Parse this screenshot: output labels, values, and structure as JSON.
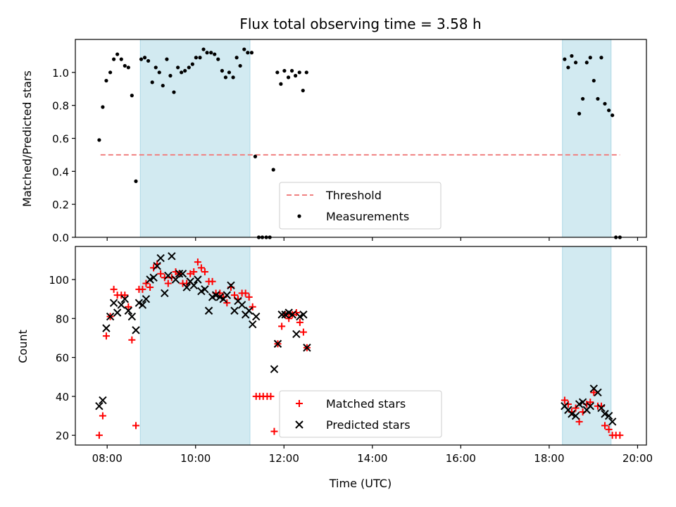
{
  "title": "Flux total observing time = 3.58 h",
  "chart_data": [
    {
      "type": "scatter",
      "panel": "top",
      "ylabel": "Matched/Predicted stars",
      "xlabel": "",
      "x_unit": "hours (UTC)",
      "xlim": [
        7.28,
        20.2
      ],
      "ylim": [
        0,
        1.2
      ],
      "yticks": [
        0.0,
        0.2,
        0.4,
        0.6,
        0.8,
        1.0
      ],
      "ytick_labels": [
        "0.0",
        "0.2",
        "0.4",
        "0.6",
        "0.8",
        "1.0"
      ],
      "xticks": [
        8,
        10,
        12,
        14,
        16,
        18,
        20
      ],
      "shaded_intervals": [
        [
          8.75,
          11.23
        ],
        [
          18.3,
          19.4
        ]
      ],
      "shade_color": "#add8e6",
      "threshold": {
        "name": "Threshold",
        "value": 0.5,
        "x_range": [
          7.85,
          19.6
        ],
        "color": "#f08080"
      },
      "legend": {
        "placement": "lower-center",
        "entries": [
          "Threshold",
          "Measurements"
        ]
      },
      "series": [
        {
          "name": "Measurements",
          "marker": "dot",
          "color": "#000000",
          "points": [
            [
              7.82,
              0.59
            ],
            [
              7.9,
              0.79
            ],
            [
              7.98,
              0.95
            ],
            [
              8.07,
              1.0
            ],
            [
              8.15,
              1.08
            ],
            [
              8.23,
              1.11
            ],
            [
              8.32,
              1.08
            ],
            [
              8.4,
              1.04
            ],
            [
              8.48,
              1.03
            ],
            [
              8.56,
              0.86
            ],
            [
              8.65,
              0.34
            ],
            [
              8.77,
              1.08
            ],
            [
              8.85,
              1.09
            ],
            [
              8.93,
              1.07
            ],
            [
              9.02,
              0.94
            ],
            [
              9.1,
              1.03
            ],
            [
              9.18,
              1.0
            ],
            [
              9.26,
              0.92
            ],
            [
              9.35,
              1.08
            ],
            [
              9.43,
              0.98
            ],
            [
              9.51,
              0.88
            ],
            [
              9.6,
              1.03
            ],
            [
              9.68,
              1.0
            ],
            [
              9.76,
              1.01
            ],
            [
              9.85,
              1.03
            ],
            [
              9.93,
              1.05
            ],
            [
              10.01,
              1.09
            ],
            [
              10.1,
              1.09
            ],
            [
              10.18,
              1.14
            ],
            [
              10.26,
              1.12
            ],
            [
              10.35,
              1.12
            ],
            [
              10.43,
              1.11
            ],
            [
              10.51,
              1.08
            ],
            [
              10.6,
              1.01
            ],
            [
              10.68,
              0.97
            ],
            [
              10.76,
              1.0
            ],
            [
              10.85,
              0.97
            ],
            [
              10.93,
              1.09
            ],
            [
              11.01,
              1.04
            ],
            [
              11.1,
              1.14
            ],
            [
              11.18,
              1.12
            ],
            [
              11.27,
              1.12
            ],
            [
              11.35,
              0.49
            ],
            [
              11.43,
              0.0
            ],
            [
              11.51,
              0.0
            ],
            [
              11.6,
              0.0
            ],
            [
              11.68,
              0.0
            ],
            [
              11.76,
              0.41
            ],
            [
              11.85,
              1.0
            ],
            [
              11.93,
              0.93
            ],
            [
              12.01,
              1.01
            ],
            [
              12.1,
              0.97
            ],
            [
              12.18,
              1.01
            ],
            [
              12.26,
              0.98
            ],
            [
              12.35,
              1.0
            ],
            [
              12.43,
              0.89
            ],
            [
              12.51,
              1.0
            ],
            [
              18.35,
              1.08
            ],
            [
              18.43,
              1.03
            ],
            [
              18.51,
              1.1
            ],
            [
              18.6,
              1.06
            ],
            [
              18.68,
              0.75
            ],
            [
              18.76,
              0.84
            ],
            [
              18.85,
              1.06
            ],
            [
              18.93,
              1.09
            ],
            [
              19.01,
              0.95
            ],
            [
              19.1,
              0.84
            ],
            [
              19.18,
              1.09
            ],
            [
              19.26,
              0.81
            ],
            [
              19.35,
              0.77
            ],
            [
              19.43,
              0.74
            ],
            [
              19.51,
              0.0
            ],
            [
              19.6,
              0.0
            ]
          ]
        }
      ]
    },
    {
      "type": "scatter",
      "panel": "bottom",
      "ylabel": "Count",
      "xlabel": "Time (UTC)",
      "x_unit": "hours (UTC)",
      "xlim": [
        7.28,
        20.2
      ],
      "ylim": [
        15,
        117
      ],
      "yticks": [
        20,
        40,
        60,
        80,
        100
      ],
      "ytick_labels": [
        "20",
        "40",
        "60",
        "80",
        "100"
      ],
      "xticks": [
        8,
        10,
        12,
        14,
        16,
        18,
        20
      ],
      "xtick_labels": [
        "08:00",
        "10:00",
        "12:00",
        "14:00",
        "16:00",
        "18:00",
        "20:00"
      ],
      "shaded_intervals": [
        [
          8.75,
          11.23
        ],
        [
          18.3,
          19.4
        ]
      ],
      "shade_color": "#add8e6",
      "legend": {
        "placement": "lower-center",
        "entries": [
          "Matched stars",
          "Predicted stars"
        ]
      },
      "series": [
        {
          "name": "Matched stars",
          "marker": "plus",
          "color": "#ff0000",
          "points": [
            [
              7.82,
              20
            ],
            [
              7.9,
              30
            ],
            [
              7.98,
              71
            ],
            [
              8.07,
              81
            ],
            [
              8.15,
              95
            ],
            [
              8.23,
              92
            ],
            [
              8.32,
              92
            ],
            [
              8.4,
              92
            ],
            [
              8.48,
              86
            ],
            [
              8.56,
              69
            ],
            [
              8.65,
              25
            ],
            [
              8.72,
              95
            ],
            [
              8.8,
              95
            ],
            [
              8.88,
              98
            ],
            [
              8.97,
              96
            ],
            [
              9.05,
              106
            ],
            [
              9.13,
              108
            ],
            [
              9.21,
              103
            ],
            [
              9.3,
              101
            ],
            [
              9.38,
              98
            ],
            [
              9.46,
              101
            ],
            [
              9.55,
              104
            ],
            [
              9.63,
              103
            ],
            [
              9.71,
              98
            ],
            [
              9.8,
              98
            ],
            [
              9.88,
              103
            ],
            [
              9.96,
              104
            ],
            [
              10.05,
              109
            ],
            [
              10.13,
              106
            ],
            [
              10.21,
              104
            ],
            [
              10.3,
              99
            ],
            [
              10.38,
              99
            ],
            [
              10.46,
              93
            ],
            [
              10.55,
              93
            ],
            [
              10.63,
              91
            ],
            [
              10.71,
              88
            ],
            [
              10.8,
              96
            ],
            [
              10.88,
              92
            ],
            [
              10.96,
              90
            ],
            [
              11.05,
              93
            ],
            [
              11.13,
              93
            ],
            [
              11.21,
              91
            ],
            [
              11.29,
              86
            ],
            [
              11.37,
              40
            ],
            [
              11.45,
              40
            ],
            [
              11.53,
              40
            ],
            [
              11.62,
              40
            ],
            [
              11.7,
              40
            ],
            [
              11.78,
              22
            ],
            [
              11.86,
              67
            ],
            [
              11.95,
              76
            ],
            [
              12.03,
              82
            ],
            [
              12.11,
              80
            ],
            [
              12.19,
              82
            ],
            [
              12.28,
              83
            ],
            [
              12.36,
              78
            ],
            [
              12.44,
              73
            ],
            [
              12.52,
              65
            ],
            [
              18.35,
              38
            ],
            [
              18.43,
              36
            ],
            [
              18.51,
              32
            ],
            [
              18.6,
              34
            ],
            [
              18.68,
              27
            ],
            [
              18.76,
              32
            ],
            [
              18.85,
              36
            ],
            [
              18.93,
              37
            ],
            [
              19.01,
              42
            ],
            [
              19.1,
              35
            ],
            [
              19.18,
              35
            ],
            [
              19.26,
              25
            ],
            [
              19.35,
              23
            ],
            [
              19.43,
              20
            ],
            [
              19.51,
              20
            ],
            [
              19.6,
              20
            ]
          ]
        },
        {
          "name": "Predicted stars",
          "marker": "x",
          "color": "#000000",
          "points": [
            [
              7.82,
              35
            ],
            [
              7.9,
              38
            ],
            [
              7.98,
              75
            ],
            [
              8.07,
              81
            ],
            [
              8.15,
              88
            ],
            [
              8.23,
              83
            ],
            [
              8.32,
              87
            ],
            [
              8.4,
              90
            ],
            [
              8.48,
              84
            ],
            [
              8.56,
              81
            ],
            [
              8.65,
              74
            ],
            [
              8.72,
              88
            ],
            [
              8.8,
              87
            ],
            [
              8.88,
              90
            ],
            [
              8.97,
              100
            ],
            [
              9.05,
              101
            ],
            [
              9.13,
              107
            ],
            [
              9.21,
              111
            ],
            [
              9.3,
              93
            ],
            [
              9.38,
              102
            ],
            [
              9.46,
              112
            ],
            [
              9.55,
              100
            ],
            [
              9.63,
              103
            ],
            [
              9.71,
              103
            ],
            [
              9.8,
              96
            ],
            [
              9.88,
              99
            ],
            [
              9.96,
              97
            ],
            [
              10.05,
              100
            ],
            [
              10.13,
              94
            ],
            [
              10.21,
              95
            ],
            [
              10.3,
              84
            ],
            [
              10.38,
              91
            ],
            [
              10.46,
              92
            ],
            [
              10.55,
              91
            ],
            [
              10.63,
              90
            ],
            [
              10.71,
              92
            ],
            [
              10.8,
              97
            ],
            [
              10.88,
              84
            ],
            [
              10.96,
              89
            ],
            [
              11.05,
              87
            ],
            [
              11.13,
              82
            ],
            [
              11.21,
              84
            ],
            [
              11.29,
              77
            ],
            [
              11.37,
              81
            ],
            [
              11.78,
              54
            ],
            [
              11.86,
              67
            ],
            [
              11.95,
              82
            ],
            [
              12.03,
              82
            ],
            [
              12.11,
              83
            ],
            [
              12.19,
              82
            ],
            [
              12.28,
              72
            ],
            [
              12.36,
              81
            ],
            [
              12.44,
              82
            ],
            [
              12.52,
              65
            ],
            [
              18.35,
              35
            ],
            [
              18.43,
              33
            ],
            [
              18.51,
              31
            ],
            [
              18.6,
              30
            ],
            [
              18.68,
              36
            ],
            [
              18.76,
              37
            ],
            [
              18.85,
              33
            ],
            [
              18.93,
              35
            ],
            [
              19.01,
              44
            ],
            [
              19.1,
              42
            ],
            [
              19.18,
              34
            ],
            [
              19.26,
              31
            ],
            [
              19.35,
              30
            ],
            [
              19.43,
              27
            ]
          ]
        }
      ]
    }
  ]
}
